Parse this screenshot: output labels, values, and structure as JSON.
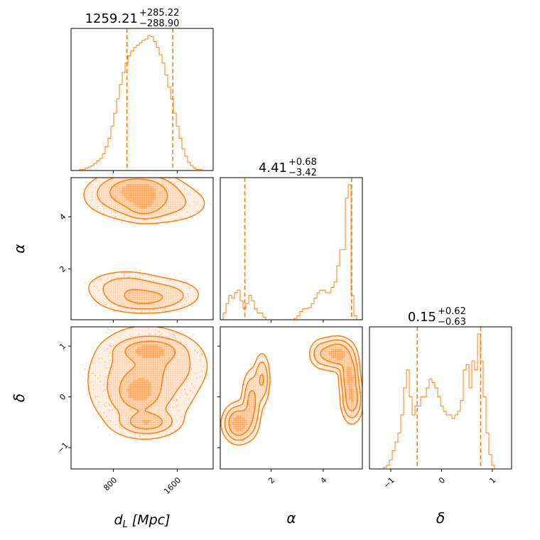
{
  "chart_data": {
    "type": "corner",
    "accent_color": "#ff7f0e",
    "parameters": [
      "d_L",
      "alpha",
      "delta"
    ],
    "axis_labels": {
      "d_L": "d",
      "d_L_sub": "L",
      "d_L_unit": "[Mpc]",
      "alpha": "α",
      "delta": "δ"
    },
    "titles": {
      "d_L": {
        "median": "1259.21",
        "plus": "+285.22",
        "minus": "−288.90"
      },
      "alpha": {
        "median": "4.41",
        "plus": "+0.68",
        "minus": "−3.42"
      },
      "delta": {
        "median": "0.15",
        "plus": "+0.62",
        "minus": "−0.63"
      }
    },
    "ranges": {
      "d_L": [
        270,
        2050
      ],
      "alpha": [
        0.05,
        5.5
      ],
      "delta": [
        -1.42,
        1.38
      ]
    },
    "ticks": {
      "d_L": {
        "values": [
          800,
          1600
        ],
        "labels": [
          "800",
          "1600"
        ]
      },
      "alpha": {
        "values": [
          2,
          4
        ],
        "labels": [
          "2",
          "4"
        ]
      },
      "delta": {
        "values": [
          -1,
          0,
          1
        ],
        "labels": [
          "−1",
          "0",
          "1"
        ]
      }
    },
    "quantile_lines": {
      "d_L": [
        970.31,
        1544.43
      ],
      "alpha": [
        0.99,
        5.09
      ],
      "delta": [
        -0.48,
        0.77
      ]
    },
    "hist_d_L": {
      "edges_start": 270,
      "bin_width": 35.6,
      "counts": [
        0,
        0,
        0,
        1,
        1,
        2,
        3,
        4,
        6,
        8,
        10,
        14,
        20,
        27,
        37,
        48,
        60,
        72,
        82,
        90,
        96,
        100,
        103,
        105,
        107,
        109,
        110,
        113,
        112,
        108,
        103,
        97,
        90,
        80,
        70,
        60,
        48,
        37,
        27,
        18,
        12,
        7,
        4,
        2,
        1,
        1,
        0,
        0,
        0,
        0
      ]
    },
    "hist_alpha": {
      "edges_start": 0.05,
      "bin_width": 0.109,
      "counts": [
        0,
        5,
        12,
        18,
        16,
        20,
        22,
        14,
        8,
        12,
        18,
        14,
        8,
        5,
        5,
        2,
        0,
        0,
        0,
        0,
        0,
        0,
        0,
        0,
        0,
        0,
        1,
        3,
        6,
        8,
        8,
        9,
        12,
        16,
        20,
        22,
        22,
        20,
        20,
        24,
        28,
        40,
        52,
        52,
        90,
        100,
        18,
        3,
        0,
        0
      ]
    },
    "hist_delta": {
      "edges_start": -1.42,
      "bin_width": 0.056,
      "counts": [
        0,
        0,
        0,
        0,
        0,
        1,
        2,
        5,
        10,
        15,
        20,
        30,
        45,
        55,
        40,
        30,
        35,
        35,
        40,
        40,
        45,
        50,
        48,
        45,
        40,
        35,
        32,
        30,
        30,
        28,
        30,
        32,
        38,
        55,
        58,
        45,
        60,
        55,
        75,
        60,
        40,
        20,
        8,
        2,
        0,
        0,
        0,
        0,
        0,
        0
      ]
    },
    "kde_modes": {
      "d_L_alpha": [
        {
          "x": 1120,
          "y": 5.05,
          "sx": 230,
          "sy": 0.32,
          "w": 1.0
        },
        {
          "x": 1180,
          "y": 4.35,
          "sx": 130,
          "sy": 0.25,
          "w": 0.55
        },
        {
          "x": 1020,
          "y": 4.8,
          "sx": 300,
          "sy": 0.45,
          "w": 0.6
        },
        {
          "x": 1450,
          "y": 4.5,
          "sx": 300,
          "sy": 0.4,
          "w": 0.35
        },
        {
          "x": 1150,
          "y": 0.8,
          "sx": 260,
          "sy": 0.25,
          "w": 0.6
        },
        {
          "x": 950,
          "y": 1.3,
          "sx": 250,
          "sy": 0.32,
          "w": 0.5
        },
        {
          "x": 1450,
          "y": 1.05,
          "sx": 250,
          "sy": 0.32,
          "w": 0.35
        }
      ],
      "d_L_delta": [
        {
          "x": 1250,
          "y": 0.92,
          "sx": 200,
          "sy": 0.12,
          "w": 0.9
        },
        {
          "x": 1120,
          "y": 0.1,
          "sx": 160,
          "sy": 0.22,
          "w": 0.85
        },
        {
          "x": 1220,
          "y": -0.5,
          "sx": 170,
          "sy": 0.12,
          "w": 0.8
        },
        {
          "x": 1150,
          "y": 0.3,
          "sx": 380,
          "sy": 0.6,
          "w": 0.35
        },
        {
          "x": 1400,
          "y": 0.65,
          "sx": 300,
          "sy": 0.3,
          "w": 0.3
        }
      ],
      "alpha_delta": [
        {
          "x": 0.75,
          "y": -0.52,
          "sx": 0.28,
          "sy": 0.18,
          "w": 1.0
        },
        {
          "x": 1.25,
          "y": -0.1,
          "sx": 0.18,
          "sy": 0.3,
          "w": 0.55
        },
        {
          "x": 1.65,
          "y": 0.35,
          "sx": 0.15,
          "sy": 0.25,
          "w": 0.45
        },
        {
          "x": 4.55,
          "y": 0.85,
          "sx": 0.3,
          "sy": 0.15,
          "w": 0.9
        },
        {
          "x": 5.0,
          "y": 0.45,
          "sx": 0.18,
          "sy": 0.22,
          "w": 0.8
        },
        {
          "x": 5.1,
          "y": -0.05,
          "sx": 0.2,
          "sy": 0.22,
          "w": 0.7
        },
        {
          "x": 3.95,
          "y": 0.85,
          "sx": 0.25,
          "sy": 0.15,
          "w": 0.35
        }
      ]
    },
    "contour_levels": [
      0.18,
      0.42,
      0.7
    ]
  }
}
